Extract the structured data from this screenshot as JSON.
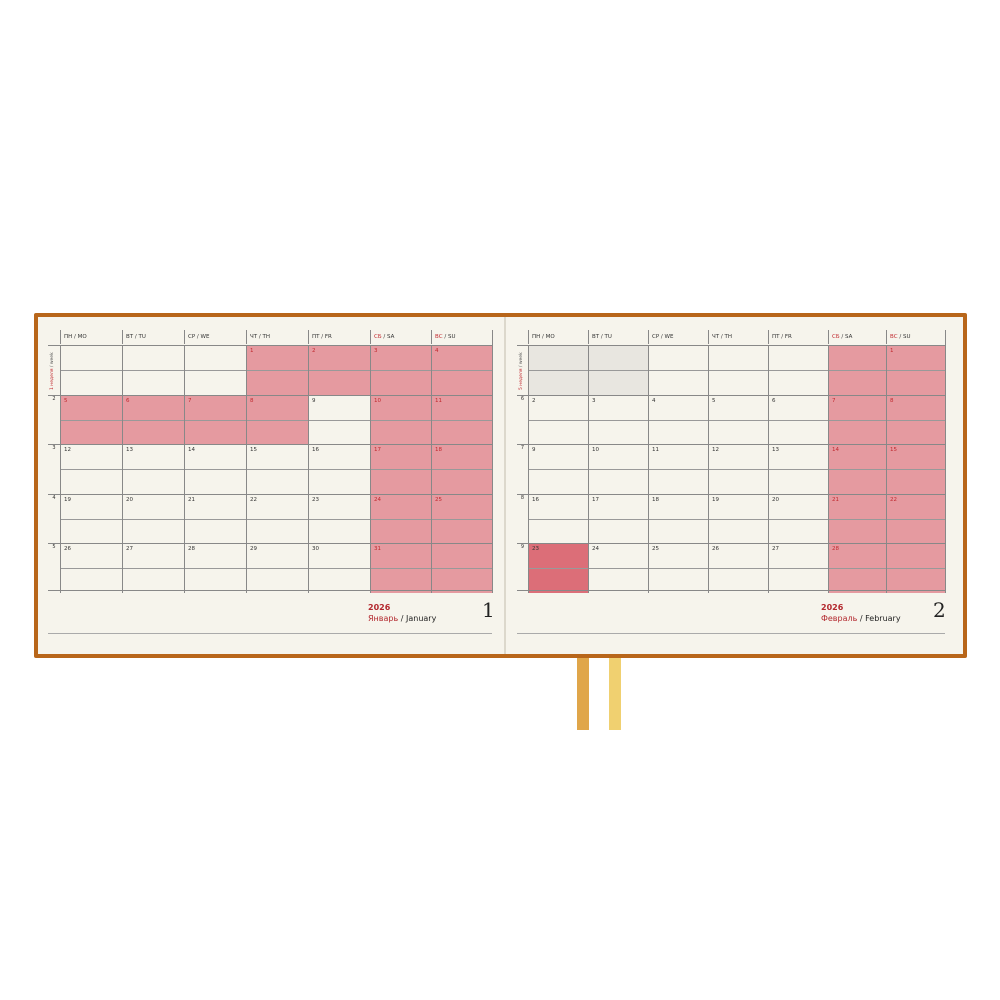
{
  "day_headers": [
    {
      "ru": "ПН",
      "en": "MO",
      "weekend": false
    },
    {
      "ru": "ВТ",
      "en": "TU",
      "weekend": false
    },
    {
      "ru": "СР",
      "en": "WE",
      "weekend": false
    },
    {
      "ru": "ЧТ",
      "en": "TH",
      "weekend": false
    },
    {
      "ru": "ПТ",
      "en": "FR",
      "weekend": false
    },
    {
      "ru": "СБ",
      "en": "SA",
      "weekend": true
    },
    {
      "ru": "ВС",
      "en": "SU",
      "weekend": true
    }
  ],
  "colors": {
    "cover": "#b8661a",
    "page": "#f6f4ec",
    "holiday": "#e59aa0",
    "accent": "#c0282e",
    "ribbon1": "#e0a64a",
    "ribbon2": "#f0d070"
  },
  "pages": [
    {
      "year": "2026",
      "month_ru": "Январь",
      "month_en": "January",
      "page_number": "1",
      "first_week_label_ru": "1 неделя",
      "first_week_label_en": "week",
      "week_numbers": [
        "",
        "2",
        "3",
        "4",
        "5"
      ],
      "weeks": [
        [
          null,
          null,
          null,
          1,
          2,
          3,
          4
        ],
        [
          5,
          6,
          7,
          8,
          9,
          10,
          11
        ],
        [
          12,
          13,
          14,
          15,
          16,
          17,
          18
        ],
        [
          19,
          20,
          21,
          22,
          23,
          24,
          25
        ],
        [
          26,
          27,
          28,
          29,
          30,
          31,
          null
        ]
      ],
      "holidays": [
        1,
        2,
        3,
        4,
        5,
        6,
        7,
        8,
        10,
        11,
        17,
        18,
        24,
        25,
        31
      ],
      "pink_empty": [
        [
          4,
          6
        ]
      ],
      "grey_empty": []
    },
    {
      "year": "2026",
      "month_ru": "Февраль",
      "month_en": "February",
      "page_number": "2",
      "first_week_label_ru": "5 неделя",
      "first_week_label_en": "week",
      "week_numbers": [
        "",
        "6",
        "7",
        "8",
        "9"
      ],
      "weeks": [
        [
          null,
          null,
          null,
          null,
          null,
          null,
          1
        ],
        [
          2,
          3,
          4,
          5,
          6,
          7,
          8
        ],
        [
          9,
          10,
          11,
          12,
          13,
          14,
          15
        ],
        [
          16,
          17,
          18,
          19,
          20,
          21,
          22
        ],
        [
          23,
          24,
          25,
          26,
          27,
          28,
          null
        ]
      ],
      "holidays": [
        1,
        7,
        8,
        14,
        15,
        21,
        22,
        23,
        28
      ],
      "pink_empty": [
        [
          0,
          5
        ],
        [
          4,
          6
        ]
      ],
      "grey_empty": [
        [
          0,
          0
        ],
        [
          0,
          1
        ]
      ]
    }
  ]
}
